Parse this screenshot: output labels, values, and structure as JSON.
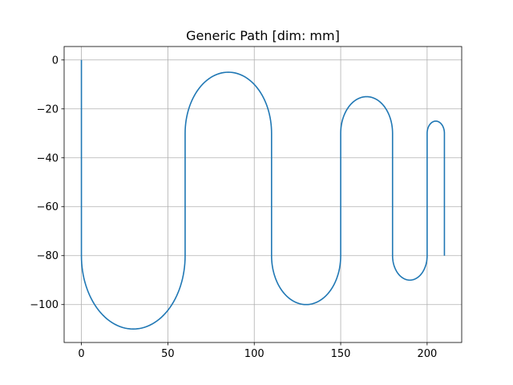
{
  "chart_data": {
    "type": "line",
    "title": "Generic Path [dim: mm]",
    "xlabel": "",
    "ylabel": "",
    "xlim": [
      -10,
      220
    ],
    "ylim": [
      -115.5,
      5.5
    ],
    "xticks": [
      0,
      50,
      100,
      150,
      200
    ],
    "yticks": [
      0,
      -20,
      -40,
      -60,
      -80,
      -100
    ],
    "xtick_labels": [
      "0",
      "50",
      "100",
      "150",
      "200"
    ],
    "ytick_labels": [
      "0",
      "−20",
      "−40",
      "−60",
      "−80",
      "−100"
    ],
    "grid": true,
    "legend": "none",
    "line_color": "#1f77b4",
    "grid_color": "#b0b0b0",
    "segments": [
      {
        "kind": "line",
        "from": [
          0,
          0
        ],
        "to": [
          0,
          -80
        ]
      },
      {
        "kind": "half-ellipse",
        "center": [
          30,
          -80
        ],
        "rx": 30,
        "ry": 30,
        "direction": "down"
      },
      {
        "kind": "line",
        "from": [
          60,
          -80
        ],
        "to": [
          60,
          -30
        ]
      },
      {
        "kind": "half-ellipse",
        "center": [
          85,
          -30
        ],
        "rx": 25,
        "ry": 25,
        "direction": "up"
      },
      {
        "kind": "line",
        "from": [
          110,
          -30
        ],
        "to": [
          110,
          -80
        ]
      },
      {
        "kind": "half-ellipse",
        "center": [
          130,
          -80
        ],
        "rx": 20,
        "ry": 20,
        "direction": "down"
      },
      {
        "kind": "line",
        "from": [
          150,
          -80
        ],
        "to": [
          150,
          -30
        ]
      },
      {
        "kind": "half-ellipse",
        "center": [
          165,
          -30
        ],
        "rx": 15,
        "ry": 15,
        "direction": "up"
      },
      {
        "kind": "line",
        "from": [
          180,
          -30
        ],
        "to": [
          180,
          -80
        ]
      },
      {
        "kind": "half-ellipse",
        "center": [
          190,
          -80
        ],
        "rx": 10,
        "ry": 10,
        "direction": "down"
      },
      {
        "kind": "line",
        "from": [
          200,
          -80
        ],
        "to": [
          200,
          -30
        ]
      },
      {
        "kind": "half-ellipse",
        "center": [
          205,
          -30
        ],
        "rx": 5,
        "ry": 5,
        "direction": "up"
      },
      {
        "kind": "line",
        "from": [
          210,
          -30
        ],
        "to": [
          210,
          -80
        ]
      }
    ]
  }
}
